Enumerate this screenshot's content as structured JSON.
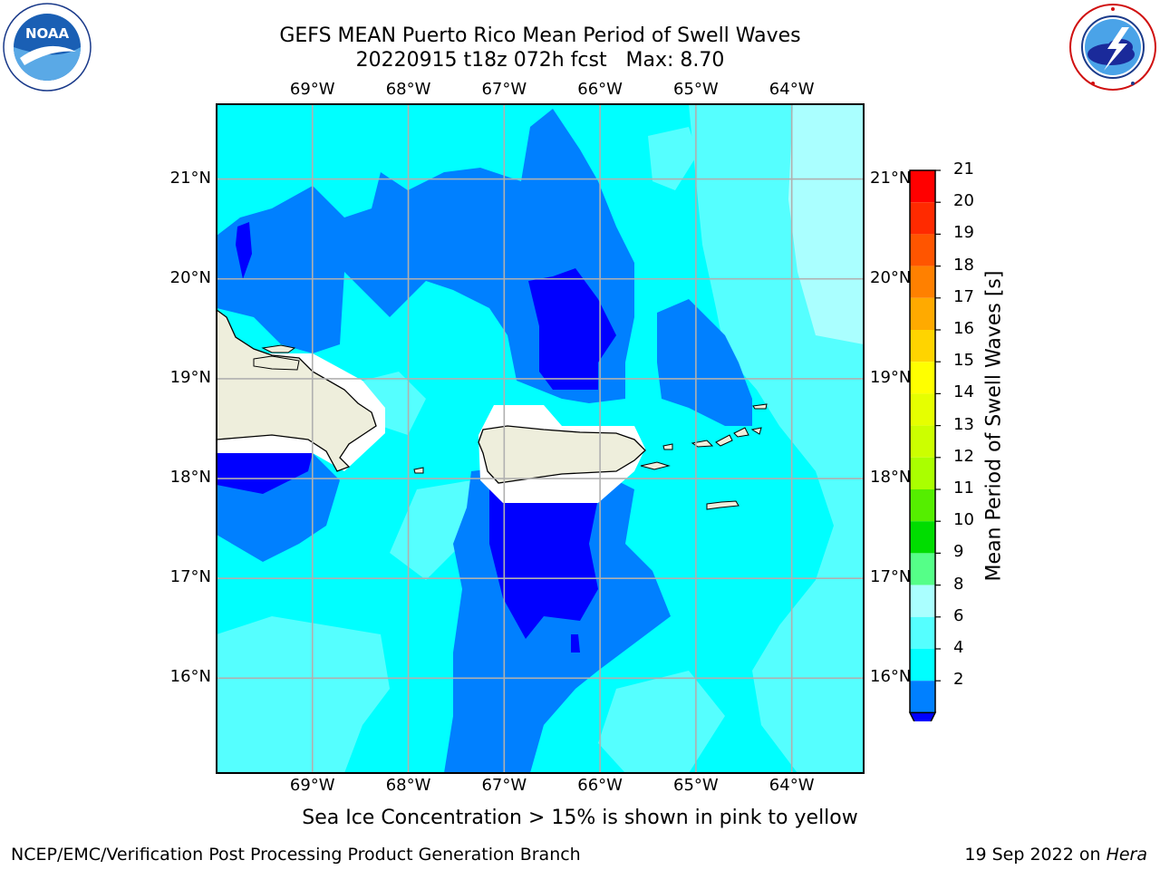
{
  "title": {
    "line1": "GEFS MEAN Puerto Rico Mean Period of Swell Waves",
    "line2": "20220915 t18z 072h fcst   Max: 8.70"
  },
  "logos": {
    "left": "noaa-logo",
    "left_ring_text": "NATIONAL OCEANIC AND ATMOSPHERIC ADMINISTRATION · U.S. DEPARTMENT OF COMMERCE",
    "left_center_text": "NOAA",
    "right": "nws-logo",
    "right_ring_text": "NATIONAL WEATHER SERVICE"
  },
  "map": {
    "lon_labels": [
      "69°W",
      "68°W",
      "67°W",
      "66°W",
      "65°W",
      "64°W"
    ],
    "lat_labels": [
      "21°N",
      "20°N",
      "19°N",
      "18°N",
      "17°N",
      "16°N"
    ],
    "lon_range": [
      -70,
      -63.25
    ],
    "lat_range": [
      15.05,
      21.75
    ],
    "land_color": "#eeeedc",
    "field": "Mean Period of Swell Waves",
    "dominant_band_s": "4-6"
  },
  "colorbar": {
    "label": "Mean Period of Swell Waves [s]",
    "ticks": [
      "21",
      "20",
      "19",
      "18",
      "17",
      "16",
      "15",
      "14",
      "13",
      "12",
      "11",
      "10",
      "9",
      "8",
      "6",
      "4",
      "2"
    ],
    "colors": [
      "#ff0000",
      "#ff2a00",
      "#ff5500",
      "#ff8000",
      "#ffaa00",
      "#ffd400",
      "#ffff00",
      "#e6ff00",
      "#ccff00",
      "#aaff00",
      "#55ee00",
      "#00dd00",
      "#55ff88",
      "#aaffff",
      "#55ffff",
      "#00ffff",
      "#0080ff"
    ],
    "extend_below_color": "#0000ff"
  },
  "caption": "Sea Ice Concentration > 15% is shown in pink to yellow",
  "footer": {
    "left": "NCEP/EMC/Verification Post Processing Product Generation Branch",
    "right_date": "19 Sep 2022 on",
    "right_host": "Hera"
  }
}
